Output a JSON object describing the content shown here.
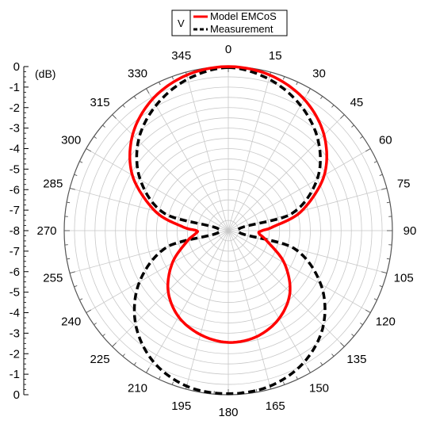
{
  "legend": {
    "polarization": "V",
    "entries": [
      "Model EMCoS",
      "Measurement"
    ]
  },
  "colors": {
    "model": "#ff0000",
    "measurement": "#000000",
    "grid": "#c8c8c8",
    "axis": "#000000"
  },
  "chart_data": {
    "type": "line",
    "subtype": "polar",
    "unit_label": "(dB)",
    "r_range": [
      -8,
      0
    ],
    "r_tick_labels": [
      "0",
      "-1",
      "-2",
      "-3",
      "-4",
      "-5",
      "-6",
      "-7",
      "-8",
      "-7",
      "-6",
      "-5",
      "-4",
      "-3",
      "-2",
      "-1",
      "0"
    ],
    "angle_labels": [
      "0",
      "15",
      "30",
      "45",
      "60",
      "75",
      "90",
      "105",
      "120",
      "135",
      "150",
      "165",
      "180",
      "195",
      "210",
      "225",
      "240",
      "255",
      "270",
      "285",
      "300",
      "315",
      "330",
      "345"
    ],
    "angle_direction": "clockwise",
    "zero_location": "top",
    "grid": true,
    "legend_position": "top",
    "series": [
      {
        "name": "Model EMCoS",
        "style": "solid",
        "theta": [
          0,
          15,
          30,
          45,
          60,
          75,
          85,
          90,
          95,
          105,
          120,
          135,
          150,
          165,
          180,
          195,
          210,
          225,
          240,
          255,
          265,
          270,
          275,
          285,
          300,
          315,
          330,
          345,
          360
        ],
        "values": [
          0,
          -0.15,
          -0.6,
          -1.4,
          -2.6,
          -4.3,
          -5.8,
          -6.35,
          -6.5,
          -6.05,
          -4.85,
          -3.75,
          -3.05,
          -2.65,
          -2.55,
          -2.75,
          -3.15,
          -3.85,
          -4.85,
          -5.9,
          -6.4,
          -6.45,
          -5.75,
          -4.3,
          -2.6,
          -1.4,
          -0.6,
          -0.15,
          0
        ]
      },
      {
        "name": "Measurement",
        "style": "dashed",
        "theta": [
          0,
          15,
          30,
          45,
          60,
          75,
          90,
          105,
          120,
          135,
          150,
          165,
          180,
          195,
          210,
          225,
          240,
          255,
          270,
          285,
          300,
          315,
          330,
          345,
          360
        ],
        "values": [
          -0.05,
          -0.35,
          -0.95,
          -1.8,
          -3.0,
          -4.8,
          -7.55,
          -4.7,
          -2.8,
          -1.45,
          -0.6,
          -0.15,
          -0.05,
          -0.15,
          -0.65,
          -1.6,
          -3.0,
          -4.9,
          -7.6,
          -4.8,
          -3.05,
          -1.8,
          -0.95,
          -0.35,
          -0.05
        ]
      }
    ]
  }
}
